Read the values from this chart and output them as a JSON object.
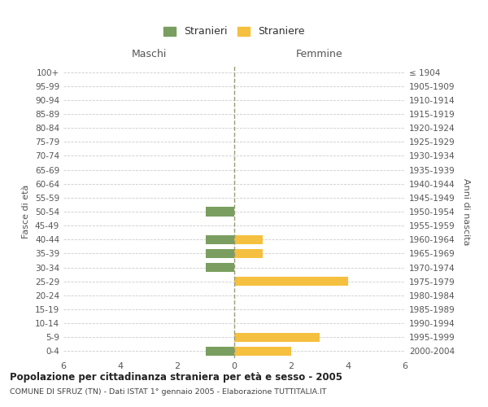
{
  "age_groups": [
    "0-4",
    "5-9",
    "10-14",
    "15-19",
    "20-24",
    "25-29",
    "30-34",
    "35-39",
    "40-44",
    "45-49",
    "50-54",
    "55-59",
    "60-64",
    "65-69",
    "70-74",
    "75-79",
    "80-84",
    "85-89",
    "90-94",
    "95-99",
    "100+"
  ],
  "birth_years": [
    "2000-2004",
    "1995-1999",
    "1990-1994",
    "1985-1989",
    "1980-1984",
    "1975-1979",
    "1970-1974",
    "1965-1969",
    "1960-1964",
    "1955-1959",
    "1950-1954",
    "1945-1949",
    "1940-1944",
    "1935-1939",
    "1930-1934",
    "1925-1929",
    "1920-1924",
    "1915-1919",
    "1910-1914",
    "1905-1909",
    "≤ 1904"
  ],
  "stranieri_males": [
    1,
    0,
    0,
    0,
    0,
    0,
    1,
    1,
    1,
    0,
    1,
    0,
    0,
    0,
    0,
    0,
    0,
    0,
    0,
    0,
    0
  ],
  "straniere_females": [
    2,
    3,
    0,
    0,
    0,
    4,
    0,
    1,
    1,
    0,
    0,
    0,
    0,
    0,
    0,
    0,
    0,
    0,
    0,
    0,
    0
  ],
  "male_color": "#7a9e5f",
  "female_color": "#f5c040",
  "xlim": 6,
  "title": "Popolazione per cittadinanza straniera per età e sesso - 2005",
  "subtitle": "COMUNE DI SFRUZ (TN) - Dati ISTAT 1° gennaio 2005 - Elaborazione TUTTITALIA.IT",
  "ylabel_left": "Fasce di età",
  "ylabel_right": "Anni di nascita",
  "legend_male": "Stranieri",
  "legend_female": "Straniere",
  "header_left": "Maschi",
  "header_right": "Femmine",
  "background_color": "#ffffff",
  "grid_color": "#cccccc",
  "zero_line_color": "#999977"
}
